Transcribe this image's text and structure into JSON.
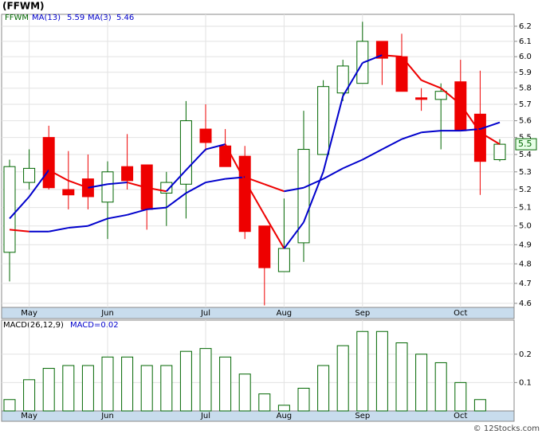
{
  "chart_data": [
    {
      "type": "candlestick",
      "title": "(FFWM)",
      "symbol": "FFWM",
      "categories": [
        null,
        "May",
        null,
        null,
        null,
        "Jun",
        null,
        null,
        null,
        null,
        "Jul",
        null,
        null,
        null,
        "Aug",
        null,
        null,
        null,
        "Sep",
        null,
        null,
        null,
        null,
        "Oct",
        null,
        null
      ],
      "open": [
        4.86,
        5.24,
        5.5,
        5.2,
        5.26,
        5.13,
        5.33,
        5.34,
        5.18,
        5.23,
        5.55,
        5.45,
        5.39,
        5.0,
        4.76,
        4.91,
        5.4,
        5.77,
        5.83,
        6.1,
        6.0,
        5.74,
        5.73,
        5.84,
        5.64,
        5.37
      ],
      "high": [
        5.37,
        5.43,
        5.57,
        5.42,
        5.4,
        5.36,
        5.52,
        5.34,
        5.3,
        5.72,
        5.7,
        5.55,
        5.45,
        5.0,
        5.15,
        5.66,
        5.85,
        5.98,
        6.23,
        6.1,
        6.15,
        5.8,
        5.83,
        5.98,
        5.91,
        5.49
      ],
      "low": [
        4.71,
        5.2,
        5.2,
        5.09,
        5.09,
        4.93,
        5.2,
        4.98,
        5.0,
        5.04,
        5.42,
        5.33,
        4.93,
        4.59,
        4.76,
        4.81,
        5.4,
        5.72,
        5.83,
        5.82,
        5.78,
        5.66,
        5.43,
        5.54,
        5.17,
        5.36
      ],
      "close": [
        5.33,
        5.32,
        5.21,
        5.17,
        5.16,
        5.3,
        5.25,
        5.09,
        5.24,
        5.6,
        5.47,
        5.33,
        4.97,
        4.78,
        4.88,
        5.43,
        5.81,
        5.94,
        6.1,
        5.99,
        5.78,
        5.73,
        5.78,
        5.54,
        5.36,
        5.46
      ],
      "up_color": "#006600",
      "down_color": "#ee0000",
      "series": [
        {
          "name": "MA(13)",
          "value": 5.59,
          "values": [
            4.98,
            4.97,
            4.97,
            4.99,
            5.0,
            5.04,
            5.06,
            5.09,
            5.1,
            5.18,
            5.24,
            5.26,
            5.27,
            5.23,
            5.19,
            5.21,
            5.26,
            5.32,
            5.37,
            5.43,
            5.49,
            5.53,
            5.54,
            5.54,
            5.55,
            5.59
          ]
        },
        {
          "name": "MA(3)",
          "value": 5.46,
          "values": [
            5.04,
            5.16,
            5.31,
            5.25,
            5.21,
            5.23,
            5.24,
            5.21,
            5.19,
            5.31,
            5.43,
            5.46,
            5.25,
            5.06,
            4.88,
            5.02,
            5.3,
            5.75,
            5.96,
            6.01,
            6.0,
            5.85,
            5.8,
            5.7,
            5.53,
            5.46
          ]
        }
      ],
      "rising_color": "#0000cc",
      "falling_color": "#ee0000",
      "last_price": {
        "value": 5.46,
        "label": "5.5"
      },
      "log_scale": true,
      "grid": true,
      "ylim": [
        4.58,
        6.28
      ],
      "yticks": [
        4.6,
        4.7,
        4.8,
        4.9,
        {
          "value": 5,
          "label": "5.0"
        },
        5.1,
        5.2,
        5.3,
        5.4,
        5.5,
        5.6,
        5.7,
        5.8,
        5.9,
        {
          "value": 6,
          "label": "6.0"
        },
        6.1,
        6.2
      ]
    },
    {
      "type": "bar",
      "title": "MACD(26,12,9)",
      "indicator": "MACD",
      "indicator_value": 0.02,
      "color": "#006600",
      "categories": [
        null,
        "May",
        null,
        null,
        null,
        "Jun",
        null,
        null,
        null,
        null,
        "Jul",
        null,
        null,
        null,
        "Aug",
        null,
        null,
        null,
        "Sep",
        null,
        null,
        null,
        null,
        "Oct",
        null,
        null
      ],
      "values": [
        0.04,
        0.11,
        0.15,
        0.16,
        0.16,
        0.19,
        0.19,
        0.16,
        0.16,
        0.21,
        0.22,
        0.19,
        0.13,
        0.06,
        0.02,
        0.08,
        0.16,
        0.23,
        0.28,
        0.28,
        0.24,
        0.2,
        0.17,
        0.1,
        0.04,
        null
      ],
      "grid": true,
      "ylim": [
        0,
        0.32
      ],
      "yticks": [
        0.1,
        0.2
      ]
    }
  ],
  "footer": "© 12Stocks.com"
}
